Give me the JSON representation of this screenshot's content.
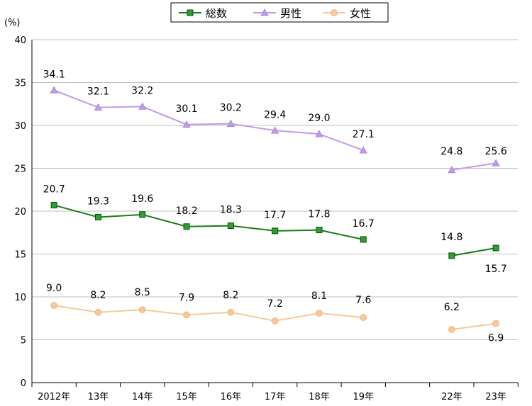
{
  "chart_data": {
    "type": "line",
    "unit_label": "(%)",
    "categories": [
      "2012年",
      "13年",
      "14年",
      "15年",
      "16年",
      "17年",
      "18年",
      "19年",
      "22年",
      "23年"
    ],
    "category_slots": [
      0,
      1,
      2,
      3,
      4,
      5,
      6,
      7,
      9,
      10
    ],
    "ylim": [
      0,
      40
    ],
    "yticks": [
      0,
      5,
      10,
      15,
      20,
      25,
      30,
      35,
      40
    ],
    "grid": true,
    "legend_position": "top",
    "series": [
      {
        "name": "総数",
        "color": "#1a7a1a",
        "marker_fill": "#2fa02f",
        "marker": "square",
        "values": [
          20.7,
          19.3,
          19.6,
          18.2,
          18.3,
          17.7,
          17.8,
          16.7,
          14.8,
          15.7
        ],
        "labels": [
          "20.7",
          "19.3",
          "19.6",
          "18.2",
          "18.3",
          "17.7",
          "17.8",
          "16.7",
          "14.8",
          "15.7"
        ]
      },
      {
        "name": "男性",
        "color": "#c29be8",
        "marker_fill": "#c29be8",
        "marker": "triangle",
        "values": [
          34.1,
          32.1,
          32.2,
          30.1,
          30.2,
          29.4,
          29.0,
          27.1,
          24.8,
          25.6
        ],
        "labels": [
          "34.1",
          "32.1",
          "32.2",
          "30.1",
          "30.2",
          "29.4",
          "29.0",
          "27.1",
          "24.8",
          "25.6"
        ]
      },
      {
        "name": "女性",
        "color": "#f7c99a",
        "marker_fill": "#f7c99a",
        "marker": "circle",
        "values": [
          9.0,
          8.2,
          8.5,
          7.9,
          8.2,
          7.2,
          8.1,
          7.6,
          6.2,
          6.9
        ],
        "labels": [
          "9.0",
          "8.2",
          "8.5",
          "7.9",
          "8.2",
          "7.2",
          "8.1",
          "7.6",
          "6.2",
          "6.9"
        ]
      }
    ]
  }
}
